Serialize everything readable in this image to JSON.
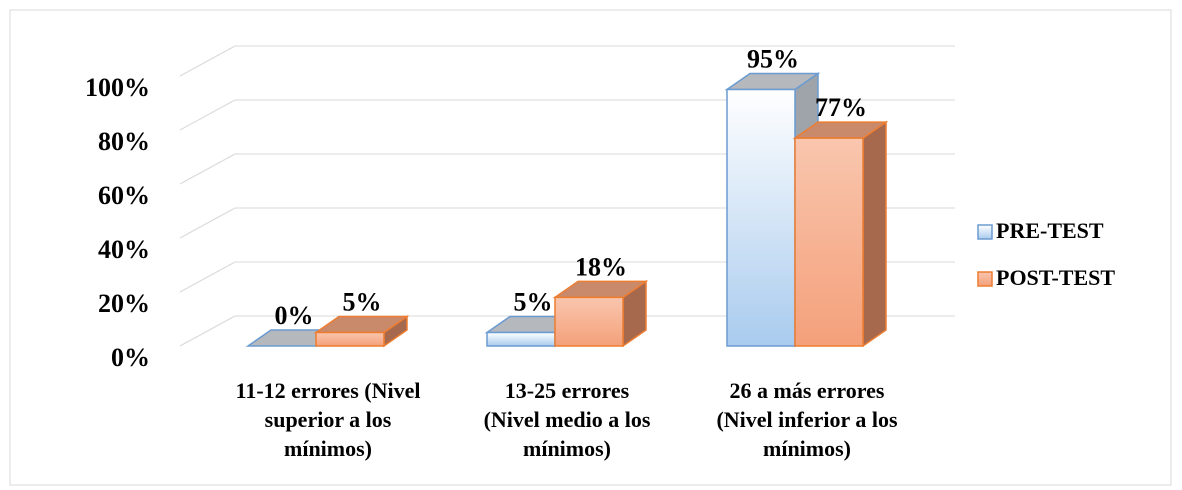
{
  "chart_data": {
    "type": "bar3d",
    "categories": [
      "11-12 errores (Nivel superior a los mínimos)",
      "13-25 errores (Nivel medio a los mínimos)",
      "26 a más errores (Nivel inferior a los mínimos)"
    ],
    "series": [
      {
        "name": "PRE-TEST",
        "color": "#bdd7ee",
        "values": [
          0,
          5,
          95
        ],
        "value_labels": [
          "0%",
          "5%",
          "95%"
        ]
      },
      {
        "name": "POST-TEST",
        "color": "#f4a07a",
        "values": [
          5,
          18,
          77
        ],
        "value_labels": [
          "5%",
          "18%",
          "77%"
        ]
      }
    ],
    "ylim": [
      0,
      100
    ],
    "yticks": [
      {
        "value": 0,
        "label": "0%"
      },
      {
        "value": 20,
        "label": "20%"
      },
      {
        "value": 40,
        "label": "40%"
      },
      {
        "value": 60,
        "label": "60%"
      },
      {
        "value": 80,
        "label": "80%"
      },
      {
        "value": 100,
        "label": "100%"
      }
    ],
    "grid": true,
    "legend": "right"
  }
}
